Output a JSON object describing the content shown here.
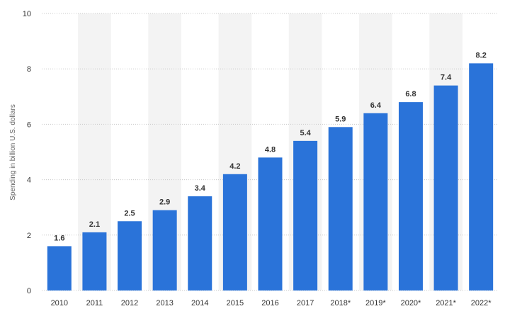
{
  "chart_data": {
    "type": "bar",
    "title": "",
    "xlabel": "",
    "ylabel": "Spending in billion U.S. dollars",
    "categories": [
      "2010",
      "2011",
      "2012",
      "2013",
      "2014",
      "2015",
      "2016",
      "2017",
      "2018*",
      "2019*",
      "2020*",
      "2021*",
      "2022*"
    ],
    "values": [
      1.6,
      2.1,
      2.5,
      2.9,
      3.4,
      4.2,
      4.8,
      5.4,
      5.9,
      6.4,
      6.8,
      7.4,
      8.2
    ],
    "value_labels": [
      "1.6",
      "2.1",
      "2.5",
      "2.9",
      "3.4",
      "4.2",
      "4.8",
      "5.4",
      "5.9",
      "6.4",
      "6.8",
      "7.4",
      "8.2"
    ],
    "ylim": [
      0,
      10
    ],
    "yticks": [
      0,
      2,
      4,
      6,
      8,
      10
    ],
    "ytick_labels": [
      "0",
      "2",
      "4",
      "6",
      "8",
      "10"
    ],
    "grid": true,
    "legend": "none",
    "bar_color": "#2a73d9",
    "band_color": "#f3f3f3"
  }
}
